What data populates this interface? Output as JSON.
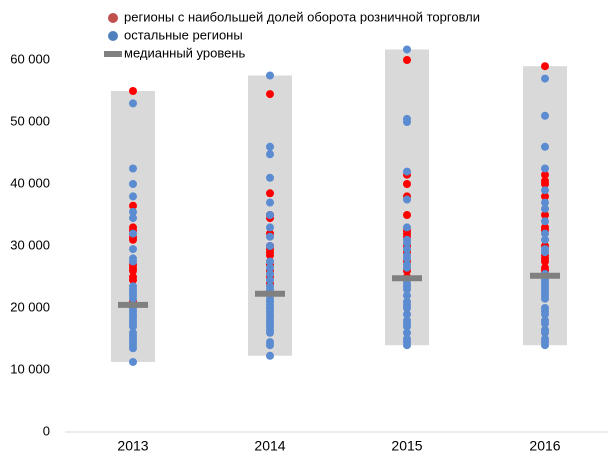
{
  "chart_data": {
    "type": "strip",
    "categories": [
      "2013",
      "2014",
      "2015",
      "2016"
    ],
    "ylim": [
      0,
      63000
    ],
    "yticks": [
      0,
      {
        "value": 10000,
        "label": "10 000"
      },
      {
        "value": 20000,
        "label": "20 000"
      },
      {
        "value": 30000,
        "label": "30 000"
      },
      {
        "value": 40000,
        "label": "40 000"
      },
      {
        "value": 50000,
        "label": "50 000"
      },
      {
        "value": 60000,
        "label": "60 000"
      }
    ],
    "ranges": {
      "color": "#d9d9d9",
      "values": [
        [
          11300,
          55000
        ],
        [
          12300,
          57500
        ],
        [
          14000,
          61700
        ],
        [
          14000,
          59000
        ]
      ]
    },
    "median": {
      "name": "медианный уровень",
      "color": "#808080",
      "values": [
        20500,
        22300,
        24800,
        25200
      ]
    },
    "series": [
      {
        "name": "регионы с наибольшей долей оборота розничной торговли",
        "color": "#ff0000",
        "legend_color": "#c0504d",
        "values": [
          [
            55000,
            36500,
            33000,
            32500,
            31500,
            31000,
            27000,
            26500,
            26000,
            25000,
            24500,
            21000
          ],
          [
            54500,
            38500,
            35000,
            34500,
            32000,
            30000,
            29500,
            29000,
            28500,
            27000,
            26000,
            25000,
            24000
          ],
          [
            60000,
            41500,
            40000,
            38000,
            35000,
            32500,
            32000,
            31500,
            30000,
            29000,
            27500,
            26000,
            25000
          ],
          [
            59000,
            41500,
            40500,
            40000,
            38000,
            35000,
            33000,
            32500,
            30000,
            28500,
            28000,
            27500,
            26500,
            26000
          ]
        ]
      },
      {
        "name": "остальные регионы",
        "color": "#5b8bd0",
        "legend_color": "#4f81bd",
        "values": [
          [
            53000,
            42500,
            40000,
            38000,
            35500,
            34500,
            32000,
            29500,
            28000,
            27500,
            23500,
            23000,
            22500,
            22000,
            21500,
            20000,
            19500,
            19000,
            18500,
            18000,
            17500,
            17000,
            16000,
            15500,
            15000,
            14500,
            14000,
            13500,
            11300
          ],
          [
            57500,
            46000,
            44800,
            41000,
            37000,
            35000,
            33000,
            31500,
            30000,
            27500,
            26500,
            25500,
            24500,
            23500,
            23000,
            21500,
            21000,
            20500,
            20000,
            19500,
            19000,
            18500,
            18000,
            17500,
            17000,
            16500,
            16000,
            14500,
            14000,
            12300
          ],
          [
            61700,
            50500,
            50000,
            42000,
            37500,
            33000,
            31000,
            30500,
            29500,
            28500,
            28000,
            27000,
            26500,
            24500,
            24000,
            23500,
            23000,
            22000,
            21000,
            20500,
            20000,
            19000,
            18000,
            17500,
            17000,
            16000,
            15000,
            14500,
            14000
          ],
          [
            57000,
            51000,
            46000,
            42500,
            39000,
            37000,
            36000,
            34000,
            32000,
            31000,
            29500,
            29000,
            25500,
            25000,
            24500,
            24000,
            23500,
            23000,
            22500,
            22000,
            21500,
            20000,
            19500,
            19000,
            18000,
            17500,
            16500,
            16000,
            15000,
            14500,
            14000
          ]
        ]
      }
    ]
  }
}
